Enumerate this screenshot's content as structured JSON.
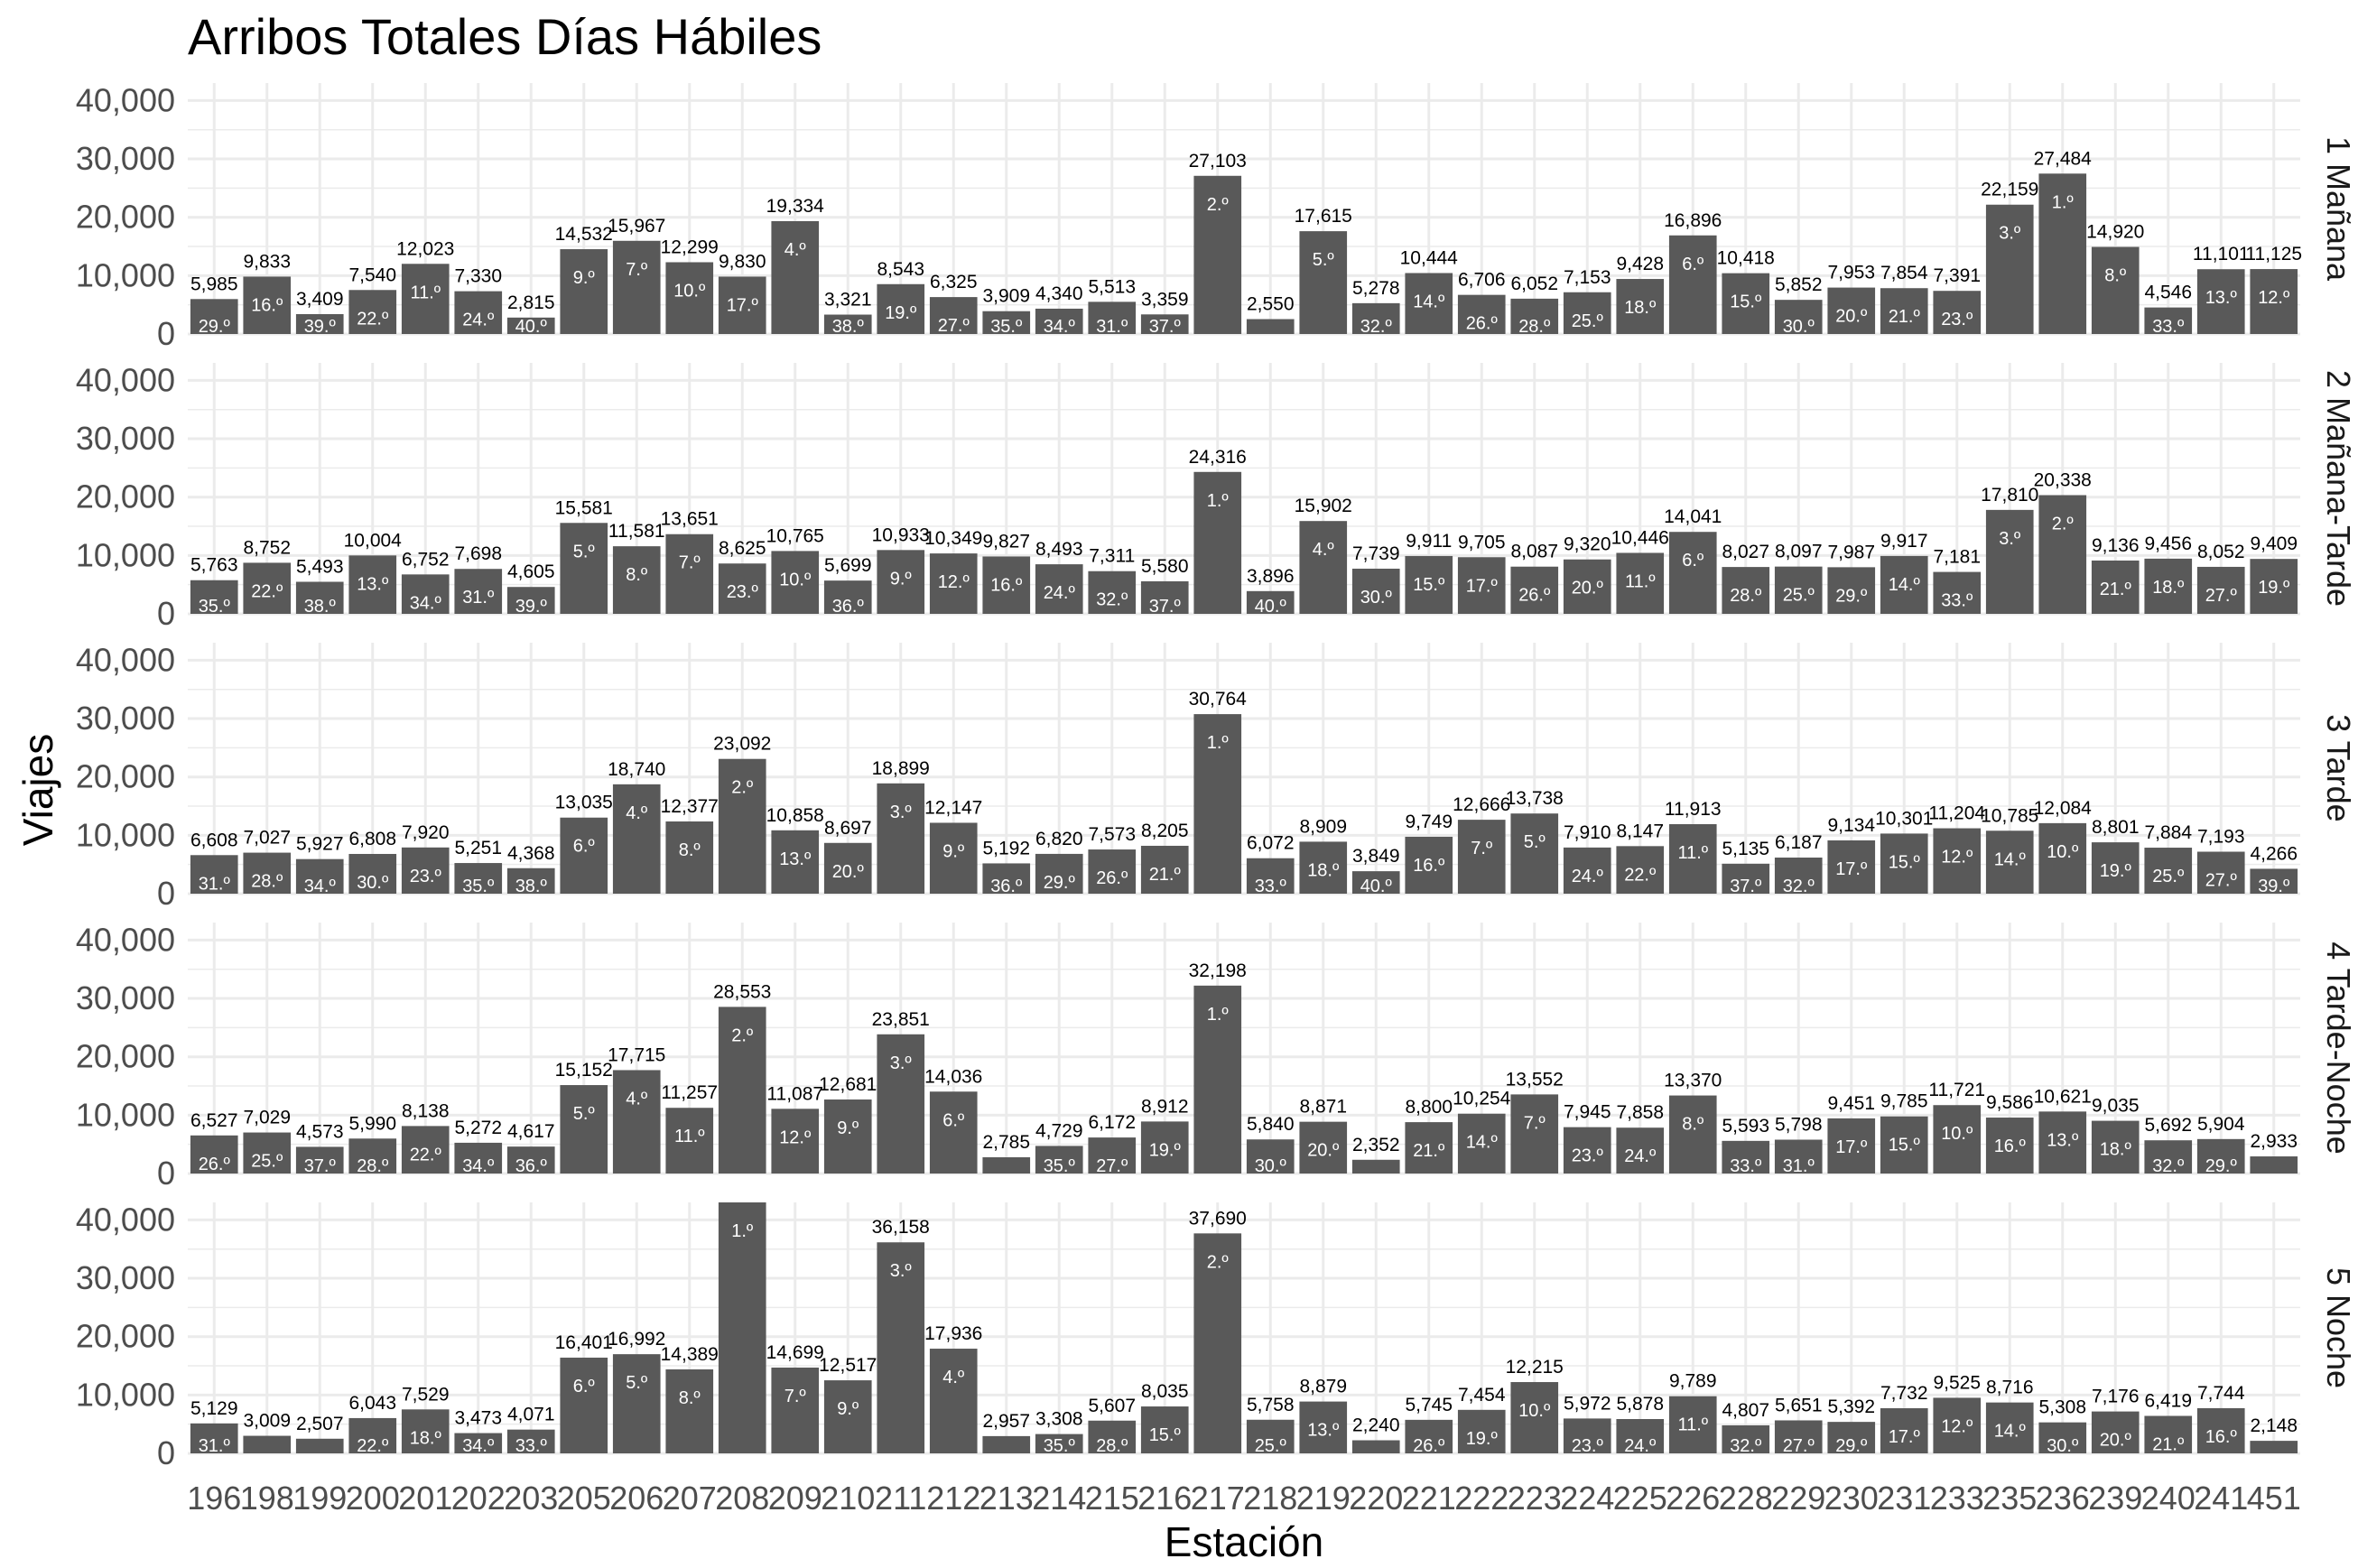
{
  "chart_data": {
    "type": "bar",
    "title": "Arribos Totales Días Hábiles",
    "xlabel": "Estación",
    "ylabel": "Viajes",
    "ylim": [
      0,
      43000
    ],
    "yticks": [
      "0",
      "10,000",
      "20,000",
      "30,000",
      "40,000"
    ],
    "ytick_values": [
      0,
      10000,
      20000,
      30000,
      40000
    ],
    "grid": true,
    "categories": [
      "196",
      "198",
      "199",
      "200",
      "201",
      "202",
      "203",
      "205",
      "206",
      "207",
      "208",
      "209",
      "210",
      "211",
      "212",
      "213",
      "214",
      "215",
      "216",
      "217",
      "218",
      "219",
      "220",
      "221",
      "222",
      "223",
      "224",
      "225",
      "226",
      "228",
      "229",
      "230",
      "231",
      "233",
      "235",
      "236",
      "239",
      "240",
      "241",
      "451"
    ],
    "series": [
      {
        "name": "1 Mañana",
        "values": [
          5985,
          9833,
          3409,
          7540,
          12023,
          7330,
          2815,
          14532,
          15967,
          12299,
          9830,
          19334,
          3321,
          8543,
          6325,
          3909,
          4340,
          5513,
          3359,
          27103,
          2550,
          17615,
          5278,
          10444,
          6706,
          6052,
          7153,
          9428,
          16896,
          10418,
          5852,
          7953,
          7854,
          7391,
          22159,
          27484,
          14920,
          4546,
          11101,
          11125
        ],
        "value_labels": [
          "5,985",
          "9,833",
          "3,409",
          "7,540",
          "12,023",
          "7,330",
          "2,815",
          "14,532",
          "15,967",
          "12,299",
          "9,830",
          "19,334",
          "3,321",
          "8,543",
          "6,325",
          "3,909",
          "4,340",
          "5,513",
          "3,359",
          "27,103",
          "2,550",
          "17,615",
          "5,278",
          "10,444",
          "6,706",
          "6,052",
          "7,153",
          "9,428",
          "16,896",
          "10,418",
          "5,852",
          "7,953",
          "7,854",
          "7,391",
          "22,159",
          "27,484",
          "14,920",
          "4,546",
          "11,101",
          "11,125"
        ],
        "ranks": [
          "29.º",
          "16.º",
          "39.º",
          "22.º",
          "11.º",
          "24.º",
          "40.º",
          "9.º",
          "7.º",
          "10.º",
          "17.º",
          "4.º",
          "38.º",
          "19.º",
          "27.º",
          "35.º",
          "34.º",
          "31.º",
          "37.º",
          "2.º",
          "",
          "5.º",
          "32.º",
          "14.º",
          "26.º",
          "28.º",
          "25.º",
          "18.º",
          "6.º",
          "15.º",
          "30.º",
          "20.º",
          "21.º",
          "23.º",
          "3.º",
          "1.º",
          "8.º",
          "33.º",
          "13.º",
          "12.º"
        ]
      },
      {
        "name": "2 Mañana-Tarde",
        "values": [
          5763,
          8752,
          5493,
          10004,
          6752,
          7698,
          4605,
          15581,
          11581,
          13651,
          8625,
          10765,
          5699,
          10933,
          10349,
          9827,
          8493,
          7311,
          5580,
          24316,
          3896,
          15902,
          7739,
          9911,
          9705,
          8087,
          9320,
          10446,
          14041,
          8027,
          8097,
          7987,
          9917,
          7181,
          17810,
          20338,
          9136,
          9456,
          8052,
          9409
        ],
        "value_labels": [
          "5,763",
          "8,752",
          "5,493",
          "10,004",
          "6,752",
          "7,698",
          "4,605",
          "15,581",
          "11,581",
          "13,651",
          "8,625",
          "10,765",
          "5,699",
          "10,933",
          "10,349",
          "9,827",
          "8,493",
          "7,311",
          "5,580",
          "24,316",
          "3,896",
          "15,902",
          "7,739",
          "9,911",
          "9,705",
          "8,087",
          "9,320",
          "10,446",
          "14,041",
          "8,027",
          "8,097",
          "7,987",
          "9,917",
          "7,181",
          "17,810",
          "20,338",
          "9,136",
          "9,456",
          "8,052",
          "9,409"
        ],
        "ranks": [
          "35.º",
          "22.º",
          "38.º",
          "13.º",
          "34.º",
          "31.º",
          "39.º",
          "5.º",
          "8.º",
          "7.º",
          "23.º",
          "10.º",
          "36.º",
          "9.º",
          "12.º",
          "16.º",
          "24.º",
          "32.º",
          "37.º",
          "1.º",
          "40.º",
          "4.º",
          "30.º",
          "15.º",
          "17.º",
          "26.º",
          "20.º",
          "11.º",
          "6.º",
          "28.º",
          "25.º",
          "29.º",
          "14.º",
          "33.º",
          "3.º",
          "2.º",
          "21.º",
          "18.º",
          "27.º",
          "19.º"
        ]
      },
      {
        "name": "3 Tarde",
        "values": [
          6608,
          7027,
          5927,
          6808,
          7920,
          5251,
          4368,
          13035,
          18740,
          12377,
          23092,
          10858,
          8697,
          18899,
          12147,
          5192,
          6820,
          7573,
          8205,
          30764,
          6072,
          8909,
          3849,
          9749,
          12666,
          13738,
          7910,
          8147,
          11913,
          5135,
          6187,
          9134,
          10301,
          11204,
          10785,
          12084,
          8801,
          7884,
          7193,
          4266
        ],
        "value_labels": [
          "6,608",
          "7,027",
          "5,927",
          "6,808",
          "7,920",
          "5,251",
          "4,368",
          "13,035",
          "18,740",
          "12,377",
          "23,092",
          "10,858",
          "8,697",
          "18,899",
          "12,147",
          "5,192",
          "6,820",
          "7,573",
          "8,205",
          "30,764",
          "6,072",
          "8,909",
          "3,849",
          "9,749",
          "12,666",
          "13,738",
          "7,910",
          "8,147",
          "11,913",
          "5,135",
          "6,187",
          "9,134",
          "10,301",
          "11,204",
          "10,785",
          "12,084",
          "8,801",
          "7,884",
          "7,193",
          "4,266"
        ],
        "ranks": [
          "31.º",
          "28.º",
          "34.º",
          "30.º",
          "23.º",
          "35.º",
          "38.º",
          "6.º",
          "4.º",
          "8.º",
          "2.º",
          "13.º",
          "20.º",
          "3.º",
          "9.º",
          "36.º",
          "29.º",
          "26.º",
          "21.º",
          "1.º",
          "33.º",
          "18.º",
          "40.º",
          "16.º",
          "7.º",
          "5.º",
          "24.º",
          "22.º",
          "11.º",
          "37.º",
          "32.º",
          "17.º",
          "15.º",
          "12.º",
          "14.º",
          "10.º",
          "19.º",
          "25.º",
          "27.º",
          "39.º"
        ]
      },
      {
        "name": "4 Tarde-Noche",
        "values": [
          6527,
          7029,
          4573,
          5990,
          8138,
          5272,
          4617,
          15152,
          17715,
          11257,
          28553,
          11087,
          12681,
          23851,
          14036,
          2785,
          4729,
          6172,
          8912,
          32198,
          5840,
          8871,
          2352,
          8800,
          10254,
          13552,
          7945,
          7858,
          13370,
          5593,
          5798,
          9451,
          9785,
          11721,
          9586,
          10621,
          9035,
          5692,
          5904,
          2933
        ],
        "value_labels": [
          "6,527",
          "7,029",
          "4,573",
          "5,990",
          "8,138",
          "5,272",
          "4,617",
          "15,152",
          "17,715",
          "11,257",
          "28,553",
          "11,087",
          "12,681",
          "23,851",
          "14,036",
          "2,785",
          "4,729",
          "6,172",
          "8,912",
          "32,198",
          "5,840",
          "8,871",
          "2,352",
          "8,800",
          "10,254",
          "13,552",
          "7,945",
          "7,858",
          "13,370",
          "5,593",
          "5,798",
          "9,451",
          "9,785",
          "11,721",
          "9,586",
          "10,621",
          "9,035",
          "5,692",
          "5,904",
          "2,933"
        ],
        "ranks": [
          "26.º",
          "25.º",
          "37.º",
          "28.º",
          "22.º",
          "34.º",
          "36.º",
          "5.º",
          "4.º",
          "11.º",
          "2.º",
          "12.º",
          "9.º",
          "3.º",
          "6.º",
          "",
          "35.º",
          "27.º",
          "19.º",
          "1.º",
          "30.º",
          "20.º",
          "",
          "21.º",
          "14.º",
          "7.º",
          "23.º",
          "24.º",
          "8.º",
          "33.º",
          "31.º",
          "17.º",
          "15.º",
          "10.º",
          "16.º",
          "13.º",
          "18.º",
          "32.º",
          "29.º",
          ""
        ]
      },
      {
        "name": "5 Noche",
        "values": [
          5129,
          3009,
          2507,
          6043,
          7529,
          3473,
          4071,
          16401,
          16992,
          14389,
          43100,
          14699,
          12517,
          36158,
          17936,
          2957,
          3308,
          5607,
          8035,
          37690,
          5758,
          8879,
          2240,
          5745,
          7454,
          12215,
          5972,
          5878,
          9789,
          4807,
          5651,
          5392,
          7732,
          9525,
          8716,
          5308,
          7176,
          6419,
          7744,
          2148
        ],
        "value_labels": [
          "5,129",
          "3,009",
          "2,507",
          "6,043",
          "7,529",
          "3,473",
          "4,071",
          "16,401",
          "16,992",
          "14,389",
          "",
          "14,699",
          "12,517",
          "36,158",
          "17,936",
          "2,957",
          "3,308",
          "5,607",
          "8,035",
          "37,690",
          "5,758",
          "8,879",
          "2,240",
          "5,745",
          "7,454",
          "12,215",
          "5,972",
          "5,878",
          "9,789",
          "4,807",
          "5,651",
          "5,392",
          "7,732",
          "9,525",
          "8,716",
          "5,308",
          "7,176",
          "6,419",
          "7,744",
          "2,148"
        ],
        "ranks": [
          "31.º",
          "",
          "",
          "22.º",
          "18.º",
          "34.º",
          "33.º",
          "6.º",
          "5.º",
          "8.º",
          "1.º",
          "7.º",
          "9.º",
          "3.º",
          "4.º",
          "",
          "35.º",
          "28.º",
          "15.º",
          "2.º",
          "25.º",
          "13.º",
          "",
          "26.º",
          "19.º",
          "10.º",
          "23.º",
          "24.º",
          "11.º",
          "32.º",
          "27.º",
          "29.º",
          "17.º",
          "12.º",
          "14.º",
          "30.º",
          "20.º",
          "21.º",
          "16.º",
          ""
        ]
      }
    ]
  }
}
